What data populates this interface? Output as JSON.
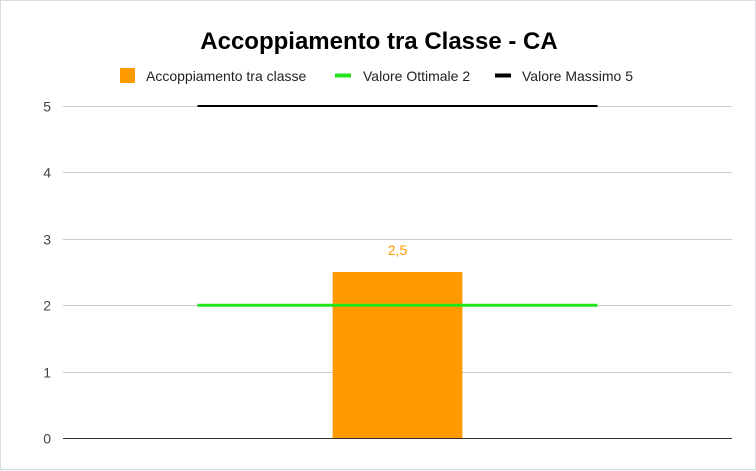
{
  "chart_data": {
    "type": "bar",
    "title": "Accoppiamento tra Classe - CA",
    "categories": [
      ""
    ],
    "series": [
      {
        "name": "Accoppiamento tra classe",
        "kind": "bar",
        "values": [
          2.5
        ],
        "color": "#ff9900",
        "data_label": "2,5"
      },
      {
        "name": "Valore Ottimale 2",
        "kind": "line",
        "values": [
          2
        ],
        "color": "#21e41b"
      },
      {
        "name": "Valore Massimo 5",
        "kind": "line",
        "values": [
          5
        ],
        "color": "#000000"
      }
    ],
    "yticks": [
      "0",
      "1",
      "2",
      "3",
      "4",
      "5"
    ],
    "ylim": [
      0,
      5
    ],
    "grid": true,
    "legend_position": "top"
  }
}
